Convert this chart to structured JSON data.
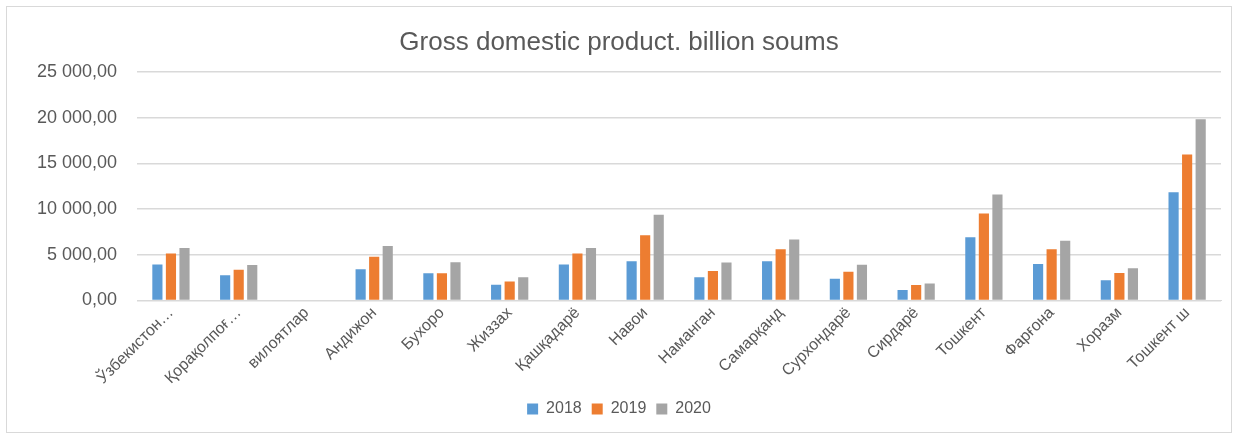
{
  "chart_data": {
    "type": "bar",
    "title": "Gross domestic product. billion soums",
    "categories": [
      "Ўзбекистон…",
      "Қорақолпоғ…",
      "вилоятлар",
      "Андижон",
      "Бухоро",
      "Жиззах",
      "Қашқадарё",
      "Навои",
      "Наманган",
      "Самарқанд",
      "Сурхондарё",
      "Сирдарё",
      "Тошкент",
      "Фарғона",
      "Хоразм",
      "Тошкент ш"
    ],
    "series": [
      {
        "name": "2018",
        "color": "#5b9bd5",
        "values": [
          3950,
          2760,
          null,
          3430,
          2990,
          1720,
          3950,
          4310,
          2540,
          4310,
          2380,
          1150,
          6920,
          4000,
          2230,
          11850
        ]
      },
      {
        "name": "2019",
        "color": "#ed7d31",
        "values": [
          5150,
          3360,
          null,
          4780,
          2990,
          2090,
          5150,
          7150,
          3230,
          5620,
          3150,
          1690,
          9540,
          5620,
          3000,
          16000
        ]
      },
      {
        "name": "2020",
        "color": "#a5a5a5",
        "values": [
          5750,
          3880,
          null,
          5970,
          4180,
          2540,
          5750,
          9380,
          4150,
          6690,
          3920,
          1850,
          11620,
          6540,
          3540,
          19850
        ]
      }
    ],
    "ylim": [
      0,
      25000
    ],
    "yticks": [
      {
        "value": 0,
        "label": "0,00"
      },
      {
        "value": 5000,
        "label": "5 000,00"
      },
      {
        "value": 10000,
        "label": "10 000,00"
      },
      {
        "value": 15000,
        "label": "15 000,00"
      },
      {
        "value": 20000,
        "label": "20 000,00"
      },
      {
        "value": 25000,
        "label": "25 000,00"
      }
    ],
    "grid": "y",
    "legend": "bottom"
  }
}
